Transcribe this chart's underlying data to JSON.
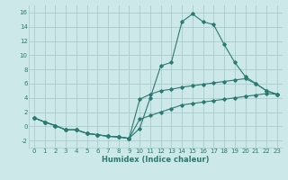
{
  "xlabel": "Humidex (Indice chaleur)",
  "x_values": [
    0,
    1,
    2,
    3,
    4,
    5,
    6,
    7,
    8,
    9,
    10,
    11,
    12,
    13,
    14,
    15,
    16,
    17,
    18,
    19,
    20,
    21,
    22,
    23
  ],
  "line1_y": [
    1.2,
    0.6,
    0.1,
    -0.5,
    -0.5,
    -1.0,
    -1.2,
    -1.4,
    -1.5,
    -1.7,
    -0.3,
    4.0,
    8.5,
    9.0,
    14.7,
    15.8,
    14.7,
    14.3,
    11.5,
    9.0,
    7.0,
    6.0,
    5.0,
    4.5
  ],
  "line2_y": [
    1.2,
    0.6,
    0.1,
    -0.5,
    -0.5,
    -1.0,
    -1.2,
    -1.4,
    -1.5,
    -1.7,
    3.8,
    4.5,
    5.0,
    5.2,
    5.5,
    5.7,
    5.9,
    6.1,
    6.3,
    6.5,
    6.7,
    6.0,
    5.0,
    4.5
  ],
  "line3_y": [
    1.2,
    0.6,
    0.1,
    -0.5,
    -0.5,
    -1.0,
    -1.2,
    -1.4,
    -1.5,
    -1.7,
    1.0,
    1.5,
    2.0,
    2.5,
    3.0,
    3.2,
    3.4,
    3.6,
    3.8,
    4.0,
    4.2,
    4.4,
    4.6,
    4.5
  ],
  "line_color": "#2a7a70",
  "bg_color": "#cce8e8",
  "grid_color": "#aacccc",
  "ylim": [
    -3,
    17
  ],
  "yticks": [
    -2,
    0,
    2,
    4,
    6,
    8,
    10,
    12,
    14,
    16
  ],
  "xlim": [
    -0.5,
    23.5
  ],
  "xticks": [
    0,
    1,
    2,
    3,
    4,
    5,
    6,
    7,
    8,
    9,
    10,
    11,
    12,
    13,
    14,
    15,
    16,
    17,
    18,
    19,
    20,
    21,
    22,
    23
  ],
  "tick_fontsize": 5.0,
  "xlabel_fontsize": 6.0
}
